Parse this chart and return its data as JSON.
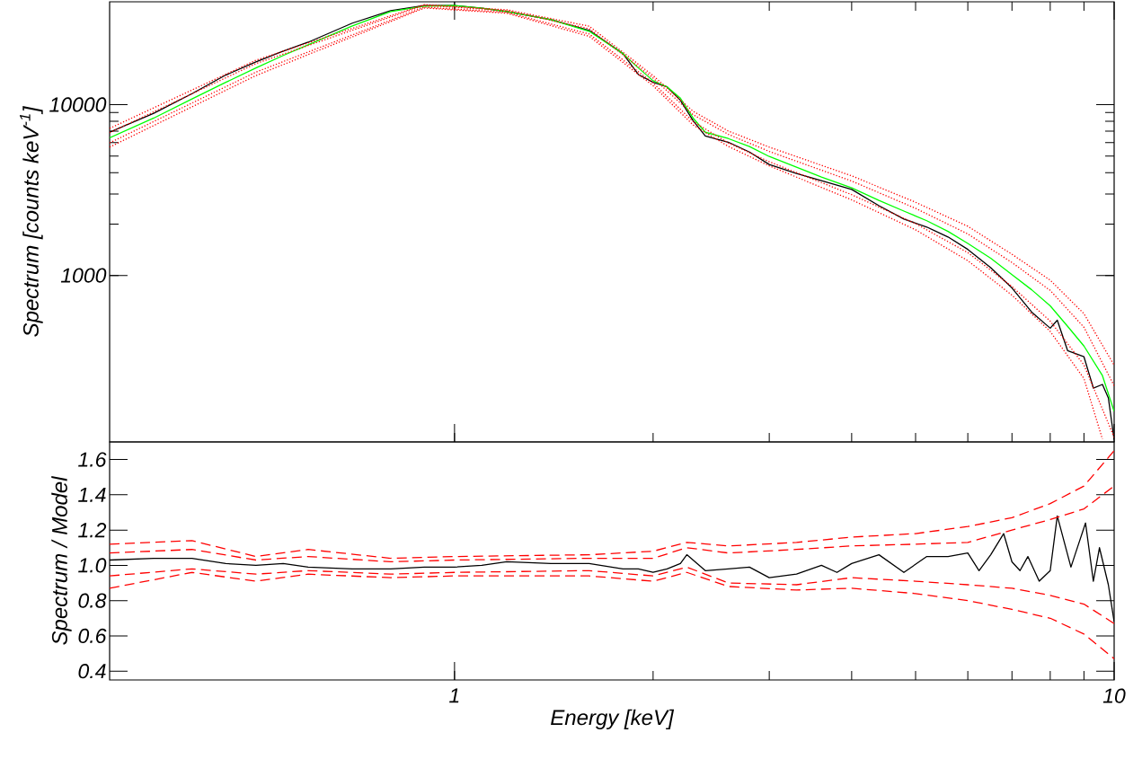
{
  "chart_data": [
    {
      "type": "line",
      "ylabel": "Spectrum [counts keV$^{-1}$]",
      "log": "xy",
      "xlim": [
        0.3,
        10
      ],
      "ylim": [
        106,
        40000
      ],
      "xticks": [
        1,
        10
      ],
      "yticks": [
        1000,
        10000
      ],
      "tick_labels": "y",
      "series": [
        {
          "color": "#000000",
          "line_style": "solid",
          "x": [
            0.3,
            0.35,
            0.4,
            0.45,
            0.5,
            0.55,
            0.6,
            0.7,
            0.8,
            0.9,
            1.0,
            1.1,
            1.2,
            1.4,
            1.6,
            1.8,
            1.9,
            2.0,
            2.1,
            2.2,
            2.3,
            2.4,
            2.6,
            2.8,
            3.0,
            3.3,
            3.6,
            4.0,
            4.4,
            4.8,
            5.2,
            5.6,
            6.0,
            6.5,
            7.0,
            7.5,
            8.0,
            8.2,
            8.5,
            9.0,
            9.3,
            9.6,
            9.8,
            10
          ],
          "values": [
            6900,
            8900,
            11600,
            14900,
            17800,
            20600,
            23200,
            30000,
            35500,
            38000,
            38000,
            36700,
            35100,
            31400,
            27200,
            19900,
            15000,
            13500,
            12700,
            10600,
            8060,
            6560,
            6030,
            5280,
            4460,
            3950,
            3590,
            3190,
            2560,
            2140,
            1920,
            1680,
            1420,
            1110,
            845,
            610,
            491,
            547,
            363,
            334,
            219,
            230,
            192,
            109
          ]
        },
        {
          "color": "#00ff00",
          "line_style": "solid",
          "x": [
            0.3,
            0.35,
            0.4,
            0.45,
            0.5,
            0.55,
            0.6,
            0.7,
            0.8,
            0.9,
            1.0,
            1.1,
            1.2,
            1.4,
            1.6,
            1.8,
            1.9,
            2.0,
            2.1,
            2.2,
            2.3,
            2.4,
            2.6,
            2.8,
            3.0,
            3.3,
            3.6,
            4.0,
            4.4,
            4.8,
            5.2,
            5.6,
            6.0,
            6.5,
            7.0,
            7.5,
            8.0,
            8.5,
            9.0,
            9.6,
            10
          ],
          "values": [
            6400,
            8340,
            10800,
            13500,
            16400,
            19400,
            22400,
            28900,
            35100,
            37700,
            38000,
            36700,
            35100,
            31400,
            26900,
            19900,
            16400,
            13800,
            12700,
            10900,
            8340,
            6890,
            6330,
            5680,
            4970,
            4300,
            3770,
            3260,
            2750,
            2380,
            2090,
            1810,
            1540,
            1260,
            1010,
            824,
            664,
            504,
            386,
            259,
            160
          ]
        },
        {
          "color": "#ff0000",
          "line_style": "dotted",
          "x": [
            0.3,
            0.5,
            0.9,
            1.2,
            1.6,
            2.0,
            2.3,
            2.6,
            3.0,
            4.0,
            5.0,
            6.0,
            7.0,
            8.0,
            9.0,
            10
          ],
          "values": [
            7260,
            18200,
            38500,
            35900,
            28800,
            14800,
            9140,
            7010,
            5640,
            3830,
            2680,
            1940,
            1330,
            938,
            597,
            298
          ]
        },
        {
          "color": "#ff0000",
          "line_style": "dotted",
          "x": [
            0.3,
            0.5,
            0.9,
            1.2,
            1.6,
            2.0,
            2.3,
            2.6,
            3.0,
            4.0,
            5.0,
            6.0,
            7.0,
            8.0,
            9.0,
            10
          ],
          "values": [
            6850,
            17400,
            38100,
            35500,
            27800,
            14300,
            8730,
            6700,
            5320,
            3570,
            2470,
            1750,
            1190,
            817,
            497,
            226
          ]
        },
        {
          "color": "#ff0000",
          "line_style": "dotted",
          "x": [
            0.3,
            0.5,
            0.9,
            1.2,
            1.6,
            2.0,
            2.3,
            2.6,
            3.0,
            4.0,
            5.0,
            6.0,
            7.0,
            8.0,
            9.0,
            10
          ],
          "values": [
            5970,
            15500,
            37200,
            34700,
            25900,
            13400,
            7960,
            5970,
            4630,
            2970,
            2010,
            1360,
            861,
            540,
            299,
            113
          ]
        },
        {
          "color": "#ff0000",
          "line_style": "dotted",
          "x": [
            0.3,
            0.5,
            0.9,
            1.2,
            1.6,
            2.0,
            2.3,
            2.6,
            3.0,
            4.0,
            5.0,
            6.0,
            7.0,
            8.0,
            9.0,
            9.6
          ],
          "values": [
            5640,
            14800,
            36800,
            34300,
            25100,
            12900,
            7600,
            5700,
            4380,
            2770,
            1850,
            1220,
            767,
            470,
            249,
            110
          ]
        }
      ]
    },
    {
      "type": "line",
      "xlabel": "Energy [keV]",
      "ylabel": "Spectrum / Model",
      "log": "x",
      "xlim": [
        0.3,
        10
      ],
      "ylim": [
        0.35,
        1.7
      ],
      "xticks": [
        1,
        10
      ],
      "yticks": [
        0.4,
        0.6,
        0.8,
        {
          "value": 1,
          "label": "1.0"
        },
        1.2,
        1.4,
        1.6
      ],
      "series": [
        {
          "color": "#000000",
          "line_style": "solid",
          "x": [
            0.3,
            0.35,
            0.4,
            0.45,
            0.5,
            0.55,
            0.6,
            0.7,
            0.8,
            0.9,
            1.0,
            1.1,
            1.2,
            1.4,
            1.6,
            1.8,
            1.9,
            2.0,
            2.1,
            2.2,
            2.25,
            2.4,
            2.6,
            2.8,
            3.0,
            3.3,
            3.6,
            3.8,
            4.0,
            4.4,
            4.8,
            5.2,
            5.6,
            6.0,
            6.24,
            6.5,
            6.8,
            7.0,
            7.2,
            7.4,
            7.7,
            8.0,
            8.2,
            8.6,
            8.83,
            9.05,
            9.3,
            9.5,
            9.8,
            10
          ],
          "values": [
            1.03,
            1.04,
            1.04,
            1.01,
            1.0,
            1.01,
            0.99,
            0.98,
            0.98,
            0.99,
            0.99,
            1.0,
            1.02,
            1.01,
            1.01,
            0.98,
            0.98,
            0.96,
            0.98,
            1.01,
            1.06,
            0.97,
            0.98,
            0.99,
            0.93,
            0.95,
            1.0,
            0.96,
            1.01,
            1.06,
            0.96,
            1.05,
            1.05,
            1.07,
            0.97,
            1.06,
            1.18,
            1.02,
            0.97,
            1.05,
            0.91,
            0.97,
            1.28,
            0.99,
            1.12,
            1.24,
            0.91,
            1.1,
            0.89,
            0.68
          ]
        },
        {
          "color": "#ff0000",
          "line_style": "dashed",
          "x": [
            0.3,
            0.4,
            0.5,
            0.6,
            0.8,
            1.0,
            1.6,
            2.0,
            2.25,
            2.6,
            3.3,
            4.0,
            5.0,
            6.0,
            7.0,
            8.0,
            9.0,
            10
          ],
          "values": [
            1.12,
            1.14,
            1.05,
            1.09,
            1.04,
            1.05,
            1.06,
            1.08,
            1.13,
            1.11,
            1.13,
            1.16,
            1.18,
            1.22,
            1.27,
            1.35,
            1.45,
            1.65
          ]
        },
        {
          "color": "#ff0000",
          "line_style": "dashed",
          "x": [
            0.3,
            0.4,
            0.5,
            0.6,
            0.8,
            1.0,
            1.6,
            2.0,
            2.25,
            2.6,
            3.3,
            4.0,
            5.0,
            6.0,
            7.0,
            8.0,
            9.0,
            10
          ],
          "values": [
            1.07,
            1.09,
            1.03,
            1.05,
            1.02,
            1.03,
            1.04,
            1.04,
            1.1,
            1.07,
            1.09,
            1.11,
            1.12,
            1.13,
            1.2,
            1.26,
            1.32,
            1.45
          ]
        },
        {
          "color": "#ff0000",
          "line_style": "dashed",
          "x": [
            0.3,
            0.4,
            0.5,
            0.6,
            0.8,
            1.0,
            1.6,
            2.0,
            2.25,
            2.6,
            3.3,
            4.0,
            5.0,
            6.0,
            7.0,
            8.0,
            9.0,
            10
          ],
          "values": [
            0.94,
            0.98,
            0.95,
            0.97,
            0.95,
            0.96,
            0.97,
            0.94,
            0.99,
            0.9,
            0.89,
            0.93,
            0.91,
            0.89,
            0.87,
            0.83,
            0.78,
            0.67
          ]
        },
        {
          "color": "#ff0000",
          "line_style": "dashed",
          "x": [
            0.3,
            0.4,
            0.5,
            0.6,
            0.8,
            1.0,
            1.6,
            2.0,
            2.25,
            2.6,
            3.3,
            4.0,
            5.0,
            6.0,
            7.0,
            8.0,
            9.0,
            10
          ],
          "values": [
            0.87,
            0.96,
            0.91,
            0.95,
            0.93,
            0.94,
            0.94,
            0.91,
            0.96,
            0.88,
            0.86,
            0.87,
            0.84,
            0.8,
            0.75,
            0.7,
            0.61,
            0.47
          ]
        }
      ]
    }
  ]
}
